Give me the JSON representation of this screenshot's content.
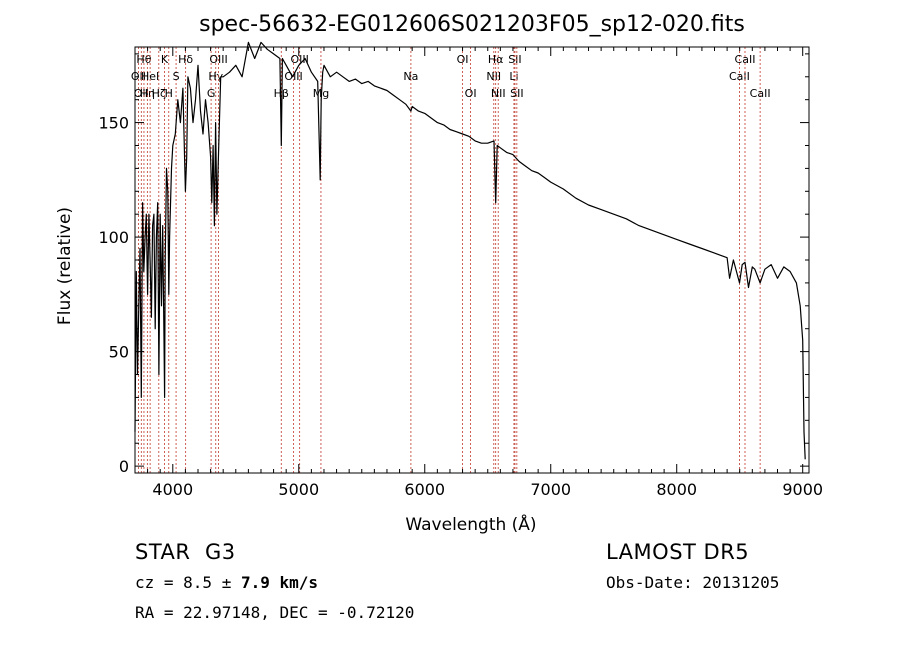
{
  "chart_data": {
    "type": "line",
    "title": "spec-56632-EG012606S021203F05_sp12-020.fits",
    "xlabel": "Wavelength (Å)",
    "ylabel": "Flux (relative)",
    "xlim": [
      3700,
      9050
    ],
    "ylim": [
      -3,
      183
    ],
    "xticks": [
      4000,
      5000,
      6000,
      7000,
      8000,
      9000
    ],
    "yticks": [
      0,
      50,
      100,
      150
    ],
    "grid": false,
    "series": [
      {
        "x": [
          3700,
          3710,
          3720,
          3730,
          3740,
          3750,
          3760,
          3770,
          3780,
          3790,
          3800,
          3810,
          3820,
          3830,
          3840,
          3850,
          3860,
          3870,
          3880,
          3890,
          3900,
          3910,
          3920,
          3930,
          3935,
          3940,
          3950,
          3960,
          3968,
          3975,
          3990,
          4000,
          4020,
          4040,
          4060,
          4080,
          4100,
          4110,
          4120,
          4140,
          4160,
          4180,
          4200,
          4220,
          4240,
          4260,
          4280,
          4300,
          4310,
          4320,
          4330,
          4340,
          4350,
          4360,
          4380,
          4400,
          4450,
          4500,
          4550,
          4600,
          4650,
          4700,
          4750,
          4800,
          4850,
          4861,
          4870,
          4900,
          4950,
          5000,
          5050,
          5100,
          5150,
          5170,
          5178,
          5190,
          5200,
          5250,
          5300,
          5350,
          5400,
          5450,
          5500,
          5550,
          5600,
          5650,
          5700,
          5750,
          5800,
          5850,
          5890,
          5900,
          5950,
          6000,
          6050,
          6100,
          6150,
          6200,
          6250,
          6300,
          6350,
          6400,
          6450,
          6500,
          6550,
          6563,
          6575,
          6600,
          6650,
          6700,
          6750,
          6800,
          6850,
          6900,
          6950,
          7000,
          7100,
          7200,
          7300,
          7400,
          7500,
          7600,
          7700,
          7800,
          7900,
          8000,
          8100,
          8200,
          8300,
          8400,
          8420,
          8450,
          8498,
          8520,
          8542,
          8570,
          8600,
          8620,
          8662,
          8700,
          8750,
          8800,
          8850,
          8900,
          8950,
          8980,
          9000,
          9010,
          9020
        ],
        "y": [
          15,
          85,
          40,
          70,
          95,
          30,
          115,
          85,
          100,
          110,
          75,
          110,
          90,
          65,
          105,
          110,
          60,
          100,
          115,
          40,
          110,
          70,
          105,
          55,
          30,
          90,
          130,
          120,
          75,
          100,
          130,
          140,
          145,
          160,
          150,
          165,
          120,
          135,
          170,
          165,
          150,
          160,
          175,
          155,
          145,
          160,
          150,
          135,
          115,
          140,
          105,
          150,
          110,
          130,
          170,
          170,
          172,
          175,
          170,
          185,
          178,
          185,
          182,
          180,
          178,
          140,
          178,
          175,
          170,
          175,
          178,
          172,
          168,
          125,
          160,
          172,
          175,
          170,
          172,
          170,
          168,
          169,
          167,
          168,
          166,
          165,
          164,
          162,
          160,
          158,
          155,
          157,
          155,
          154,
          152,
          150,
          149,
          147,
          146,
          145,
          144,
          142,
          141,
          141,
          142,
          115,
          140,
          139,
          137,
          136,
          133,
          131,
          129,
          128,
          126,
          124,
          121,
          117,
          114,
          112,
          110,
          108,
          105,
          103,
          101,
          99,
          97,
          95,
          93,
          91,
          82,
          90,
          80,
          88,
          89,
          78,
          87,
          86,
          80,
          86,
          88,
          82,
          87,
          85,
          80,
          70,
          55,
          15,
          3
        ]
      }
    ],
    "line_labels": [
      {
        "wl": 3727,
        "label": "OII",
        "row": 2
      },
      {
        "wl": 3750,
        "label": "OII",
        "row": 3
      },
      {
        "wl": 3771,
        "label": "Hθ",
        "row": 1
      },
      {
        "wl": 3798,
        "label": "Hη",
        "row": 3
      },
      {
        "wl": 3820,
        "label": "HeI",
        "row": 2
      },
      {
        "wl": 3889,
        "label": "Hζ",
        "row": 3
      },
      {
        "wl": 3934,
        "label": "K",
        "row": 1
      },
      {
        "wl": 3968,
        "label": "H",
        "row": 3
      },
      {
        "wl": 4026,
        "label": "S",
        "row": 2
      },
      {
        "wl": 4102,
        "label": "Hδ",
        "row": 1
      },
      {
        "wl": 4304,
        "label": "G",
        "row": 3
      },
      {
        "wl": 4341,
        "label": "Hγ",
        "row": 2
      },
      {
        "wl": 4363,
        "label": "OIII",
        "row": 1
      },
      {
        "wl": 4861,
        "label": "Hβ",
        "row": 3
      },
      {
        "wl": 4959,
        "label": "OIII",
        "row": 2
      },
      {
        "wl": 5007,
        "label": "OIII",
        "row": 1
      },
      {
        "wl": 5176,
        "label": "Mg",
        "row": 3
      },
      {
        "wl": 5890,
        "label": "Na",
        "row": 2
      },
      {
        "wl": 6300,
        "label": "OI",
        "row": 1
      },
      {
        "wl": 6364,
        "label": "OI",
        "row": 3
      },
      {
        "wl": 6548,
        "label": "NII",
        "row": 2
      },
      {
        "wl": 6563,
        "label": "Hα",
        "row": 1
      },
      {
        "wl": 6583,
        "label": "NII",
        "row": 3
      },
      {
        "wl": 6708,
        "label": "Li",
        "row": 2
      },
      {
        "wl": 6716,
        "label": "SII",
        "row": 1
      },
      {
        "wl": 6731,
        "label": "SII",
        "row": 3
      },
      {
        "wl": 8498,
        "label": "CaII",
        "row": 2
      },
      {
        "wl": 8542,
        "label": "CaII",
        "row": 1
      },
      {
        "wl": 8662,
        "label": "CaII",
        "row": 3
      }
    ],
    "colors": {
      "line": "#000000",
      "marker": "#c0392b",
      "axis": "#000000"
    }
  },
  "info": {
    "class": "STAR",
    "subclass": "G3",
    "survey": "LAMOST DR5",
    "cz_prefix": "cz = 8.5 ±",
    "cz_err": "7.9 km/s",
    "obs_date": "Obs-Date: 20131205",
    "coords": "RA =  22.97148, DEC =  -0.72120"
  }
}
